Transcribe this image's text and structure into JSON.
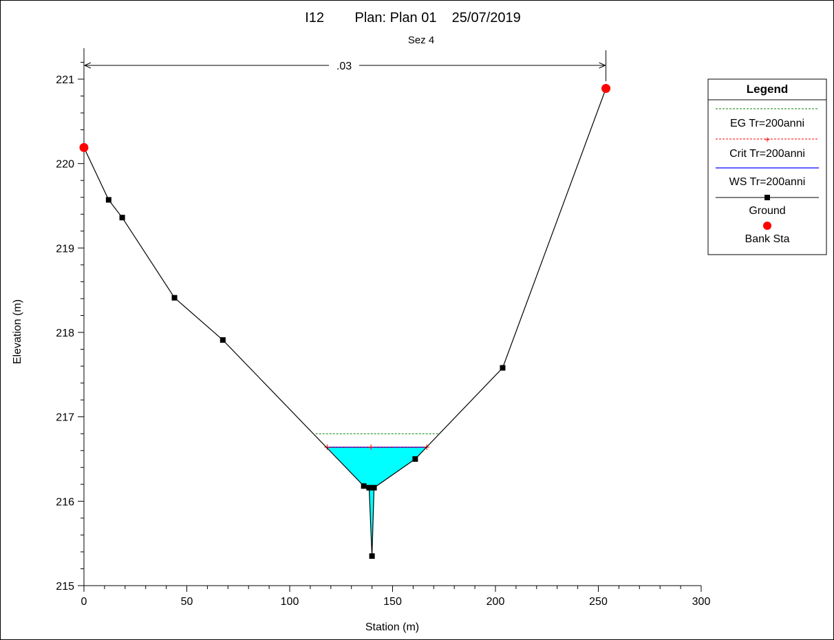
{
  "header": {
    "title": "I12        Plan: Plan 01    25/07/2019",
    "subtitle": "Sez 4",
    "roughness_label": ".03"
  },
  "axes": {
    "xlabel": "Station (m)",
    "ylabel": "Elevation (m)",
    "xticks": [
      "0",
      "50",
      "100",
      "150",
      "200",
      "250",
      "300"
    ],
    "yticks": [
      "215",
      "216",
      "217",
      "218",
      "219",
      "220",
      "221"
    ]
  },
  "legend": {
    "title": "Legend",
    "items": [
      "EG Tr=200anni",
      "Crit Tr=200anni",
      "WS Tr=200anni",
      "Ground",
      "Bank Sta"
    ]
  },
  "colors": {
    "eg": "#008000",
    "crit": "#ff0000",
    "ws": "#0000ff",
    "ground": "#000000",
    "bank": "#ff0000",
    "water_fill": "#00ffff"
  },
  "chart_data": {
    "type": "line",
    "title": "I12        Plan: Plan 01    25/07/2019",
    "subtitle": "Sez 4",
    "xlabel": "Station (m)",
    "ylabel": "Elevation (m)",
    "xlim": [
      0,
      300
    ],
    "ylim": [
      215,
      221.4
    ],
    "grid": false,
    "legend_position": "right",
    "ground": {
      "x": [
        0,
        12,
        18.6,
        44,
        67.5,
        136,
        138.6,
        140,
        141,
        161,
        203.5,
        253.7
      ],
      "y": [
        220.19,
        219.57,
        219.36,
        218.41,
        217.91,
        216.18,
        216.16,
        215.35,
        216.16,
        216.5,
        217.58,
        220.89
      ]
    },
    "bank_stations": {
      "x": [
        0,
        253.7
      ],
      "y": [
        220.19,
        220.89
      ]
    },
    "water_surface": {
      "elevation": 216.64,
      "x_from": 118.2,
      "x_to": 166.6
    },
    "critical": {
      "elevation": 216.64,
      "x": [
        118.2,
        139.5,
        166.6
      ]
    },
    "energy_grade": {
      "elevation": 216.8,
      "x_from": 112.6,
      "x_to": 172.4
    },
    "roughness": {
      "value": ".03",
      "x_from": 0,
      "x_to": 253.7
    }
  }
}
